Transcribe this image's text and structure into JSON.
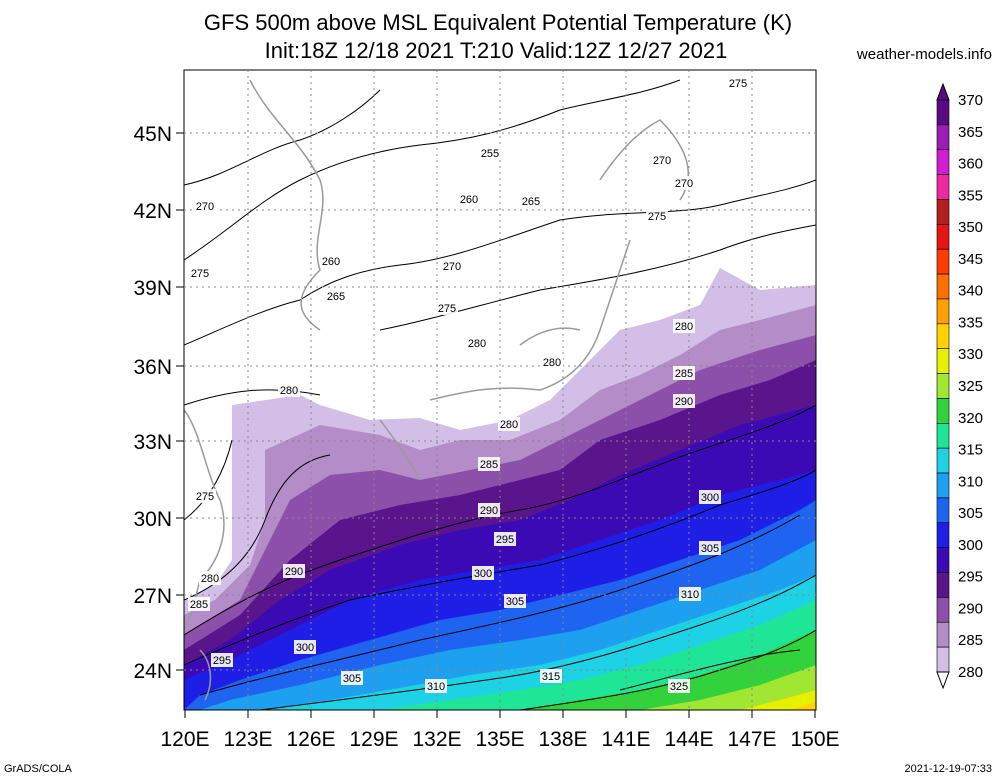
{
  "title_line1": "GFS 500m above MSL Equivalent Potential Temperature (K)",
  "title_line2": "Init:18Z 12/18 2021 T:210 Valid:12Z 12/27 2021",
  "site": "weather-models.info",
  "footer_left": "GrADS/COLA",
  "footer_right": "2021-12-19-07:33",
  "lat_labels": [
    "45N",
    "42N",
    "39N",
    "36N",
    "33N",
    "30N",
    "27N",
    "24N"
  ],
  "lon_labels": [
    "120E",
    "123E",
    "126E",
    "129E",
    "132E",
    "135E",
    "138E",
    "141E",
    "144E",
    "147E",
    "150E"
  ],
  "colorbar": {
    "levels": [
      "370",
      "365",
      "360",
      "355",
      "350",
      "345",
      "340",
      "335",
      "330",
      "325",
      "320",
      "315",
      "310",
      "305",
      "300",
      "295",
      "290",
      "285",
      "280"
    ],
    "colors": [
      "#5a0a82",
      "#9a1eb4",
      "#d21ed2",
      "#f028a0",
      "#b41e1e",
      "#e61414",
      "#ff3c00",
      "#ff6e00",
      "#ffa000",
      "#ffd200",
      "#e6f000",
      "#a0e632",
      "#32d23c",
      "#1ee696",
      "#1ed2e6",
      "#1ea0f0",
      "#1e64f0",
      "#1e1ee6",
      "#3c0ab4",
      "#5a148c",
      "#8c50aa",
      "#b48cc8",
      "#d2bee6"
    ]
  },
  "contour_labels": [
    "255",
    "260",
    "265",
    "270",
    "275",
    "280",
    "285",
    "290",
    "295",
    "300",
    "305",
    "310",
    "315",
    "325"
  ]
}
